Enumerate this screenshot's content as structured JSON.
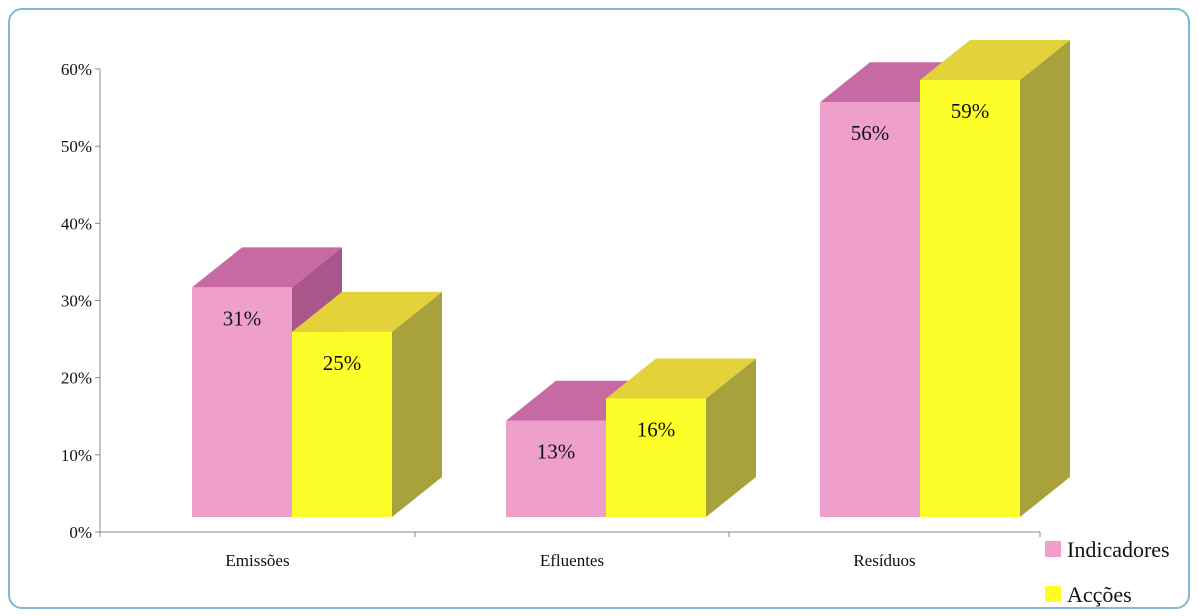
{
  "chart_data": {
    "type": "bar",
    "categories": [
      "Emissões",
      "Efluentes",
      "Resíduos"
    ],
    "series": [
      {
        "name": "Indicadores",
        "values": [
          31,
          13,
          56
        ],
        "labels": [
          "31%",
          "13%",
          "56%"
        ],
        "color": "#ee9fcb",
        "side_color": "#a9578a",
        "top_color": "#c76aa4"
      },
      {
        "name": "Acções",
        "values": [
          25,
          16,
          59
        ],
        "labels": [
          "25%",
          "16%",
          "59%"
        ],
        "color": "#fdfd2a",
        "side_color": "#a8a23d",
        "top_color": "#e4d23a"
      }
    ],
    "ylim": [
      0,
      60
    ],
    "yticks": [
      "0%",
      "10%",
      "20%",
      "30%",
      "40%",
      "50%",
      "60%"
    ],
    "title": "",
    "xlabel": "",
    "ylabel": "",
    "legend_position": "bottom-right",
    "three_d": true
  }
}
